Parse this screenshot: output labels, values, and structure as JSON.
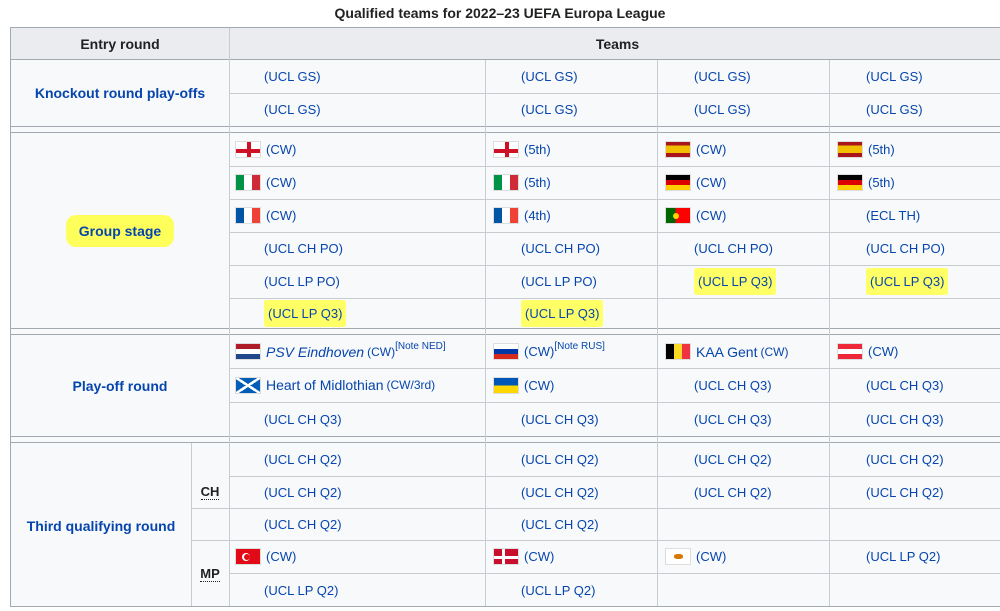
{
  "caption": "Qualified teams for 2022–23 UEFA Europa League",
  "headers": {
    "entry_round": "Entry round",
    "teams": "Teams"
  },
  "rounds": {
    "knockout": "Knockout round play-offs",
    "group": "Group stage",
    "playoff": "Play-off round",
    "third": "Third qualifying round"
  },
  "paths": {
    "ch": "CH",
    "mp": "MP"
  },
  "labels": {
    "ucl_gs": "(UCL GS)",
    "cw": "(CW)",
    "fifth": "(5th)",
    "fourth": "(4th)",
    "ecl_th": "(ECL TH)",
    "ucl_ch_po": "(UCL CH PO)",
    "ucl_lp_po": "(UCL LP PO)",
    "ucl_lp_q3": "(UCL LP Q3)",
    "ucl_ch_q3": "(UCL CH Q3)",
    "ucl_ch_q2": "(UCL CH Q2)",
    "ucl_lp_q2": "(UCL LP Q2)",
    "cw_3rd": "(CW/3rd)"
  },
  "teams": {
    "psv": "PSV Eindhoven",
    "hearts": "Heart of Midlothian",
    "gent": "KAA Gent"
  },
  "notes": {
    "ned": "[Note NED]",
    "rus": "[Note RUS]"
  },
  "flags": {
    "england": "england-flag-icon",
    "spain": "spain-flag-icon",
    "italy": "italy-flag-icon",
    "germany": "germany-flag-icon",
    "france": "france-flag-icon",
    "portugal": "portugal-flag-icon",
    "netherlands": "netherlands-flag-icon",
    "russia": "russia-flag-icon",
    "belgium": "belgium-flag-icon",
    "austria": "austria-flag-icon",
    "scotland": "scotland-flag-icon",
    "ukraine": "ukraine-flag-icon",
    "turkey": "turkey-flag-icon",
    "denmark": "denmark-flag-icon",
    "cyprus": "cyprus-flag-icon"
  },
  "colors": {
    "link": "#0645ad",
    "highlight": "#ffff66",
    "header_bg": "#eaecf0",
    "border": "#a2a9b1"
  }
}
